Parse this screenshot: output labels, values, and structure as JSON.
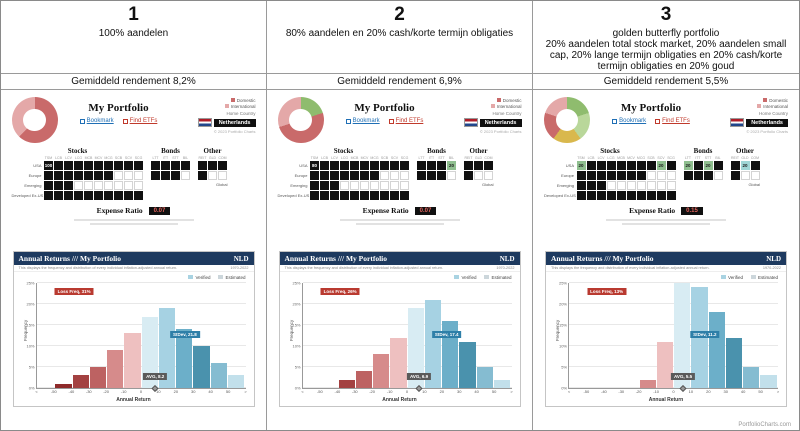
{
  "footer": "PortfolioCharts.com",
  "header_columns": [
    {
      "number": "1",
      "description": "100% aandelen",
      "rendement": "Gemiddeld rendement 8,2%"
    },
    {
      "number": "2",
      "description": "80% aandelen en 20% cash/korte termijn obligaties",
      "rendement": "Gemiddeld rendement 6,9%"
    },
    {
      "number": "3",
      "description": "golden butterfly portfolio\n20% aandelen total stock market, 20% aandelen small cap, 20% lange termijn obligaties en 20% cash/korte termijn obligaties en 20% goud",
      "rendement": "Gemiddeld rendement 5,5%"
    }
  ],
  "config_labels": {
    "title": "My Portfolio",
    "bookmark": "Bookmark",
    "find_etfs": "Find ETFs",
    "home_country_label": "Home Country",
    "home_country": "Netherlands",
    "domestic": "Domestic",
    "international": "International",
    "sections": [
      "Stocks",
      "Bonds",
      "Other"
    ],
    "rows": [
      "USA",
      "Europe",
      "Emerging"
    ],
    "developed_ex_us": "Developed Ex-US",
    "global_label": "Global",
    "expense_ratio_label": "Expense Ratio",
    "copyright": "© 2023 Portfolio Charts",
    "stocks_cols": [
      "TSM",
      "LCB",
      "LCV",
      "LCG",
      "MCB",
      "MCV",
      "MCG",
      "SCB",
      "SCV",
      "SCG"
    ],
    "bonds_cols": [
      "LTT",
      "ITT",
      "STT",
      "BIL"
    ],
    "other_cols": [
      "REIT",
      "GLD",
      "COM"
    ]
  },
  "portfolios": [
    {
      "config": {
        "expense_ratio": "0.07",
        "donut": [
          {
            "c": "#c96a6a",
            "p": 62
          },
          {
            "c": "#e4a8a8",
            "p": 38
          }
        ],
        "highlights": [
          {
            "s": "stocks",
            "r": 0,
            "c": 0,
            "v": "100",
            "bg": "#101010",
            "fg": "#ffffff"
          }
        ]
      }
    },
    {
      "config": {
        "expense_ratio": "0.07",
        "donut": [
          {
            "c": "#8fbc6e",
            "p": 20
          },
          {
            "c": "#c96a6a",
            "p": 50
          },
          {
            "c": "#e4a8a8",
            "p": 30
          }
        ],
        "highlights": [
          {
            "s": "stocks",
            "r": 0,
            "c": 0,
            "v": "80",
            "bg": "#101010",
            "fg": "#ffffff"
          },
          {
            "s": "bonds",
            "r": 0,
            "c": 3,
            "v": "20",
            "bg": "#8fbf8f",
            "fg": "#1a1a1a"
          }
        ]
      }
    },
    {
      "config": {
        "expense_ratio": "0.15",
        "donut": [
          {
            "c": "#8fbc6e",
            "p": 20
          },
          {
            "c": "#b9d79a",
            "p": 20
          },
          {
            "c": "#d9b84d",
            "p": 20
          },
          {
            "c": "#c96a6a",
            "p": 20
          },
          {
            "c": "#e4a8a8",
            "p": 20
          }
        ],
        "highlights": [
          {
            "s": "stocks",
            "r": 0,
            "c": 0,
            "v": "20",
            "bg": "#8fbf8f",
            "fg": "#1a1a1a"
          },
          {
            "s": "stocks",
            "r": 0,
            "c": 8,
            "v": "20",
            "bg": "#8fbf8f",
            "fg": "#1a1a1a"
          },
          {
            "s": "bonds",
            "r": 0,
            "c": 0,
            "v": "20",
            "bg": "#8fbf8f",
            "fg": "#1a1a1a"
          },
          {
            "s": "bonds",
            "r": 0,
            "c": 2,
            "v": "20",
            "bg": "#8fbf8f",
            "fg": "#1a1a1a"
          },
          {
            "s": "other",
            "r": 0,
            "c": 1,
            "v": "20",
            "bg": "#9fd6d6",
            "fg": "#1a1a1a"
          }
        ]
      }
    }
  ],
  "chart_data": [
    {
      "type": "bar",
      "title": "Annual Returns /// My Portfolio",
      "region_badge": "NLD",
      "subtitle": "This displays the frequency and distribution of every individual inflation-adjusted annual return.",
      "period": "1970-2022",
      "legend": [
        {
          "label": "Verified",
          "color": "#a9d3e2"
        },
        {
          "label": "Estimated",
          "color": "#ccd6db"
        }
      ],
      "xlabel": "Annual Return",
      "ylabel": "Frequency",
      "ylim": [
        0,
        25
      ],
      "ytick_step": 5,
      "xticks": [
        "<",
        "-50",
        "-40",
        "-30",
        "-20",
        "-10",
        "0",
        "10",
        "20",
        "30",
        "40",
        "50",
        ">"
      ],
      "values": [
        0,
        1,
        3,
        5,
        9,
        13,
        17,
        19,
        14,
        10,
        6,
        3
      ],
      "colors": [
        "#7e1f1f",
        "#8e2a2a",
        "#a34141",
        "#bd6262",
        "#d68b8b",
        "#eec0c0",
        "#d8ecf3",
        "#a6d2e3",
        "#6cafc9",
        "#4a92ad",
        "#85bcd1",
        "#c2e0eb"
      ],
      "annotations": {
        "loss_freq": "Loss Freq, 31%",
        "avg_label": "AVG, 8.2",
        "avg_value": 8.2,
        "stdev_label": "StDev, 21.8",
        "stdev_left": 0.71
      }
    },
    {
      "type": "bar",
      "title": "Annual Returns /// My Portfolio",
      "region_badge": "NLD",
      "subtitle": "This displays the frequency and distribution of every individual inflation-adjusted annual return.",
      "period": "1970-2022",
      "legend": [
        {
          "label": "Verified",
          "color": "#a9d3e2"
        },
        {
          "label": "Estimated",
          "color": "#ccd6db"
        }
      ],
      "xlabel": "Annual Return",
      "ylabel": "Frequency",
      "ylim": [
        0,
        25
      ],
      "ytick_step": 5,
      "xticks": [
        "<",
        "-50",
        "-40",
        "-30",
        "-20",
        "-10",
        "0",
        "10",
        "20",
        "30",
        "40",
        "50",
        ">"
      ],
      "values": [
        0,
        0,
        2,
        4,
        8,
        12,
        19,
        21,
        16,
        11,
        5,
        2
      ],
      "colors": [
        "#7e1f1f",
        "#8e2a2a",
        "#a34141",
        "#bd6262",
        "#d68b8b",
        "#eec0c0",
        "#d8ecf3",
        "#a6d2e3",
        "#6cafc9",
        "#4a92ad",
        "#85bcd1",
        "#c2e0eb"
      ],
      "annotations": {
        "loss_freq": "Loss Freq, 26%",
        "avg_label": "AVG, 6.9",
        "avg_value": 6.9,
        "stdev_label": "StDev, 17.4",
        "stdev_left": 0.69
      }
    },
    {
      "type": "bar",
      "title": "Annual Returns /// My Portfolio",
      "region_badge": "NLD",
      "subtitle": "This displays the frequency and distribution of every individual inflation-adjusted annual return.",
      "period": "1970-2022",
      "legend": [
        {
          "label": "Verified",
          "color": "#a9d3e2"
        },
        {
          "label": "Estimated",
          "color": "#ccd6db"
        }
      ],
      "xlabel": "Annual Return",
      "ylabel": "Frequency",
      "ylim": [
        0,
        25
      ],
      "ytick_step": 5,
      "xticks": [
        "<",
        "-50",
        "-40",
        "-30",
        "-20",
        "-10",
        "0",
        "10",
        "20",
        "30",
        "40",
        "50",
        ">"
      ],
      "values": [
        0,
        0,
        0,
        0,
        2,
        11,
        25,
        24,
        18,
        12,
        5,
        3
      ],
      "colors": [
        "#7e1f1f",
        "#8e2a2a",
        "#a34141",
        "#bd6262",
        "#d68b8b",
        "#eec0c0",
        "#d8ecf3",
        "#a6d2e3",
        "#6cafc9",
        "#4a92ad",
        "#85bcd1",
        "#c2e0eb"
      ],
      "annotations": {
        "loss_freq": "Loss Freq, 13%",
        "avg_label": "AVG, 5.5",
        "avg_value": 5.5,
        "stdev_label": "StDev, 11.2",
        "stdev_left": 0.65
      }
    }
  ]
}
